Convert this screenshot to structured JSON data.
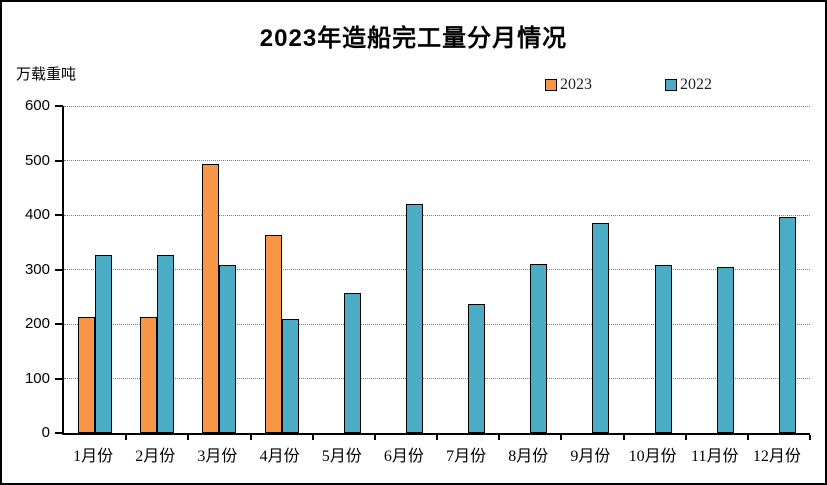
{
  "chart_data": {
    "type": "bar",
    "title": "2023年造船完工量分月情况",
    "ylabel": "万载重吨",
    "categories": [
      "1月份",
      "2月份",
      "3月份",
      "4月份",
      "5月份",
      "6月份",
      "7月份",
      "8月份",
      "9月份",
      "10月份",
      "11月份",
      "12月份"
    ],
    "series": [
      {
        "name": "2023",
        "color": "#F79646",
        "values": [
          212,
          212,
          493,
          363,
          null,
          null,
          null,
          null,
          null,
          null,
          null,
          null
        ]
      },
      {
        "name": "2022",
        "color": "#4BACC6",
        "values": [
          326,
          327,
          309,
          210,
          257,
          421,
          236,
          310,
          386,
          308,
          304,
          397
        ]
      }
    ],
    "ylim": [
      0,
      600
    ],
    "y_ticks": [
      0,
      100,
      200,
      300,
      400,
      500,
      600
    ],
    "grid": true,
    "legend_position": "top-right",
    "bar_border_color": "#000000",
    "axis_color": "#000000",
    "gridline_color": "#808080"
  }
}
